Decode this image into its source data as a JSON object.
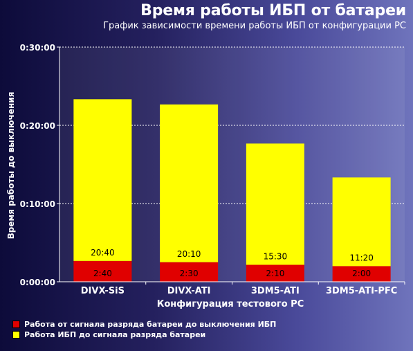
{
  "header": {
    "title": "Время работы ИБП от батареи",
    "subtitle": "График зависимости времени работы ИБП от конфигурации PC"
  },
  "chart_data": {
    "type": "bar",
    "stacked": true,
    "title": "Время работы ИБП от батареи",
    "subtitle": "График зависимости времени работы ИБП от конфигурации PC",
    "xlabel": "Конфигурация тестового PC",
    "ylabel": "Время работы до выключения",
    "categories": [
      "DIVX-SiS",
      "DIVX-ATI",
      "3DM5-ATI",
      "3DM5-ATI-PFC"
    ],
    "y_unit": "minutes",
    "ylim": [
      0,
      30
    ],
    "yticks": [
      0,
      10,
      20,
      30
    ],
    "ytick_labels": [
      "0:00:00",
      "0:10:00",
      "0:20:00",
      "0:30:00"
    ],
    "grid": true,
    "legend_position": "bottom-left",
    "series": [
      {
        "name": "Работа от сигнала разряда батареи до выключения ИБП",
        "color": "#e00000",
        "values": [
          2.6667,
          2.5,
          2.1667,
          2.0
        ],
        "labels": [
          "2:40",
          "2:30",
          "2:10",
          "2:00"
        ]
      },
      {
        "name": "Работа ИБП до сигнала разряда батареи",
        "color": "#ffff00",
        "values": [
          20.6667,
          20.1667,
          15.5,
          11.3333
        ],
        "labels": [
          "20:40",
          "20:10",
          "15:30",
          "11:20"
        ]
      }
    ]
  }
}
